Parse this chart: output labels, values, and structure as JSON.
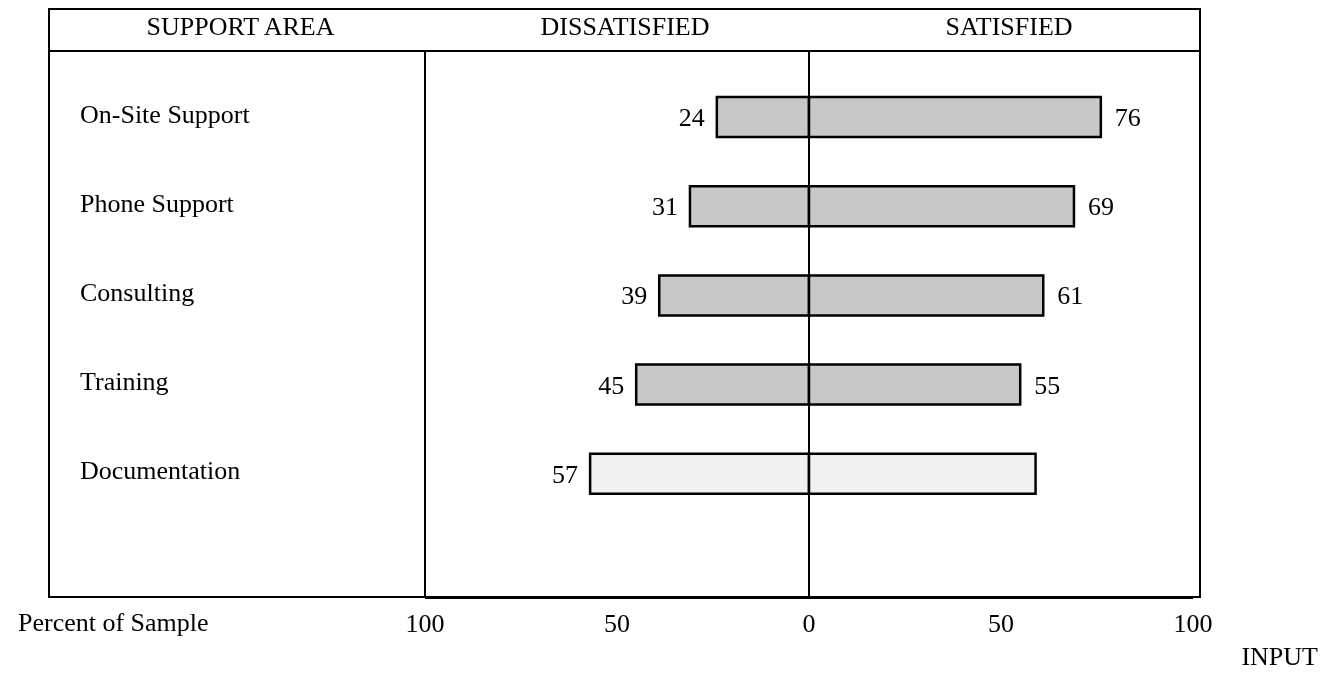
{
  "chart_data": {
    "type": "bar",
    "orientation": "horizontal",
    "ylabel": "SUPPORT AREA",
    "xlabel": "Percent of Sample",
    "annotations": [
      "INPUT"
    ],
    "categories": [
      "On-Site Support",
      "Phone Support",
      "Consulting",
      "Training",
      "Documentation"
    ],
    "series": [
      {
        "name": "DISSATISFIED",
        "colors": [
          "#c8c8c8",
          "#c8c8c8",
          "#c8c8c8",
          "#c8c8c8",
          "#f0f0f0"
        ],
        "base": [
          -24,
          -31,
          -39,
          -45,
          -57
        ],
        "values": [
          24,
          31,
          39,
          45,
          57
        ],
        "data_labels": true
      },
      {
        "name": "SATISFIED",
        "colors": [
          "#c8c8c8",
          "#c8c8c8",
          "#c8c8c8",
          "#c8c8c8",
          "#f0f0f0"
        ],
        "base": [
          0,
          0,
          0,
          0,
          0
        ],
        "values": [
          76,
          69,
          61,
          55,
          59
        ],
        "value_labels": [
          "76",
          "69",
          "61",
          "55",
          null
        ]
      }
    ],
    "xlim": [
      -100,
      100
    ],
    "xticks": [
      {
        "value": -100,
        "label": "100"
      },
      {
        "value": -50,
        "label": "50"
      },
      0,
      50,
      100
    ],
    "ref_lines": [
      {
        "axis": "x",
        "value": 0
      }
    ]
  }
}
